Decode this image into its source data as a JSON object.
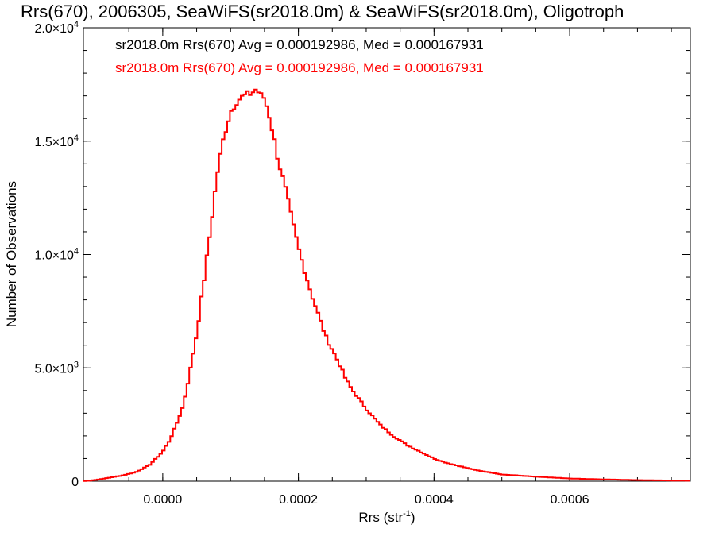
{
  "chart_data": {
    "type": "line",
    "title": "Rrs(670), 2006305, SeaWiFS(sr2018.0m) & SeaWiFS(sr2018.0m), Oligotroph",
    "xlabel": "Rrs (str",
    "xlabel_sup": "-1",
    "xlabel_end": ")",
    "ylabel": "Number of Observations",
    "xlim": [
      -0.000117,
      0.000778
    ],
    "ylim": [
      0,
      20000
    ],
    "x_ticks": [
      {
        "value": 0.0,
        "label": "0.0000"
      },
      {
        "value": 0.0002,
        "label": "0.0002"
      },
      {
        "value": 0.0004,
        "label": "0.0004"
      },
      {
        "value": 0.0006,
        "label": "0.0006"
      }
    ],
    "y_ticks": [
      {
        "value": 0,
        "label": "0"
      },
      {
        "value": 5000,
        "label": "5.0×10",
        "exp": "3"
      },
      {
        "value": 10000,
        "label": "1.0×10",
        "exp": "4"
      },
      {
        "value": 15000,
        "label": "1.5×10",
        "exp": "4"
      },
      {
        "value": 20000,
        "label": "2.0×10",
        "exp": "4"
      }
    ],
    "annotations": [
      {
        "text": "sr2018.0m Rrs(670) Avg = 0.000192986, Med = 0.000167931",
        "color": "#000000"
      },
      {
        "text": "sr2018.0m Rrs(670) Avg = 0.000192986, Med = 0.000167931",
        "color": "#ff0000"
      }
    ],
    "series": [
      {
        "color": "#ff0000",
        "x": [
          -0.000117,
          -0.0001,
          -8e-05,
          -6e-05,
          -4e-05,
          -2e-05,
          -1e-05,
          0.0,
          1e-05,
          2e-05,
          3e-05,
          4e-05,
          5e-05,
          6e-05,
          7e-05,
          8e-05,
          9e-05,
          0.0001,
          0.00011,
          0.00012,
          0.00013,
          0.000138,
          0.000145,
          0.00015,
          0.000158,
          0.000165,
          0.00017,
          0.00018,
          0.00019,
          0.0002,
          0.00021,
          0.00022,
          0.00023,
          0.00024,
          0.00025,
          0.00026,
          0.00027,
          0.00028,
          0.0003,
          0.00032,
          0.00034,
          0.00036,
          0.00038,
          0.0004,
          0.00042,
          0.00044,
          0.00046,
          0.00048,
          0.0005,
          0.00055,
          0.0006,
          0.00065,
          0.0007,
          0.000778
        ],
        "values": [
          0,
          50,
          150,
          250,
          400,
          700,
          1000,
          1300,
          1800,
          2500,
          3300,
          4800,
          6500,
          8700,
          11000,
          13500,
          15200,
          16300,
          16800,
          17000,
          17100,
          17300,
          17000,
          16900,
          16000,
          15000,
          14200,
          13000,
          11600,
          10300,
          9200,
          8200,
          7300,
          6400,
          5800,
          5200,
          4500,
          4000,
          3200,
          2500,
          2000,
          1600,
          1300,
          1000,
          800,
          650,
          500,
          400,
          300,
          200,
          120,
          80,
          50,
          20
        ]
      }
    ]
  }
}
